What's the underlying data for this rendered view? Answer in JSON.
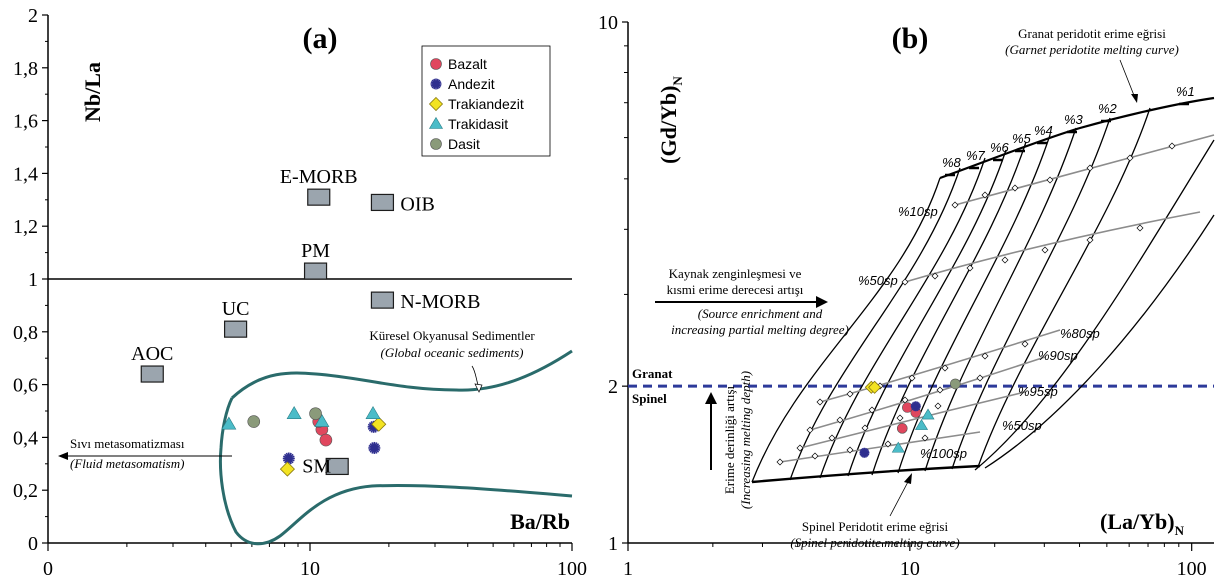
{
  "chart_data": [
    {
      "type": "scatter",
      "panel_label": "(a)",
      "xlabel": "Ba/Rb",
      "ylabel": "Nb/La",
      "xscale": "log",
      "xlim": [
        1,
        100
      ],
      "ylim": [
        0,
        2
      ],
      "x_ticks": [
        "0",
        "10",
        "100"
      ],
      "y_ticks": [
        "0",
        "0,2",
        "0,4",
        "0,6",
        "0,8",
        "1",
        "1,2",
        "1,4",
        "1,6",
        "1,8",
        "2"
      ],
      "reference_line_y": 1,
      "legend": {
        "position": "top-right",
        "items": [
          {
            "label": "Bazalt",
            "symbol": "circle",
            "color": "#e0475e"
          },
          {
            "label": "Andezit",
            "symbol": "star",
            "color": "#2f2f8f"
          },
          {
            "label": "Trakiandezit",
            "symbol": "diamond",
            "color": "#f3e322"
          },
          {
            "label": "Trakidasit",
            "symbol": "triangle",
            "color": "#4bbcc8"
          },
          {
            "label": "Dasit",
            "symbol": "circle",
            "color": "#8a9a7a"
          }
        ]
      },
      "reference_points": [
        {
          "label": "E-MORB",
          "x": 10.8,
          "y": 1.31
        },
        {
          "label": "OIB",
          "x": 18.9,
          "y": 1.29
        },
        {
          "label": "PM",
          "x": 10.5,
          "y": 1.03
        },
        {
          "label": "N-MORB",
          "x": 18.9,
          "y": 0.92
        },
        {
          "label": "UC",
          "x": 5.2,
          "y": 0.81
        },
        {
          "label": "AOC",
          "x": 2.5,
          "y": 0.64
        },
        {
          "label": "SM",
          "x": 12.7,
          "y": 0.29
        }
      ],
      "sediment_field_label": "Küresel Okyanusal Sedimentler",
      "sediment_field_label_en": "(Global oceanic sediments)",
      "fluid_arrow_label": "Sıvı metasomatizması",
      "fluid_arrow_label_en": "(Fluid metasomatism)",
      "series": [
        {
          "name": "Bazalt",
          "points": [
            [
              11.1,
              0.43
            ],
            [
              11.5,
              0.39
            ],
            [
              10.8,
              0.46
            ]
          ]
        },
        {
          "name": "Andezit",
          "points": [
            [
              8.3,
              0.32
            ],
            [
              17.6,
              0.36
            ],
            [
              17.5,
              0.44
            ]
          ]
        },
        {
          "name": "Trakiandezit",
          "points": [
            [
              8.2,
              0.28
            ],
            [
              18.3,
              0.45
            ]
          ]
        },
        {
          "name": "Trakidasit",
          "points": [
            [
              4.9,
              0.45
            ],
            [
              8.7,
              0.49
            ],
            [
              11.1,
              0.46
            ],
            [
              17.4,
              0.49
            ]
          ]
        },
        {
          "name": "Dasit",
          "points": [
            [
              6.1,
              0.46
            ],
            [
              10.5,
              0.49
            ]
          ]
        }
      ]
    },
    {
      "type": "line",
      "panel_label": "(b)",
      "xlabel": "(La/Yb)",
      "xlabel_sub": "N",
      "ylabel": "(Gd/Yb)",
      "ylabel_sub": "N",
      "xscale": "log",
      "yscale": "log",
      "xlim": [
        1,
        120
      ],
      "ylim": [
        1,
        10
      ],
      "x_ticks": [
        "1",
        "10",
        "100"
      ],
      "y_ticks": [
        "1",
        "2",
        "10"
      ],
      "boundary_y": 2,
      "boundary_upper": "Granat",
      "boundary_lower": "Spinel",
      "garnet_curve_title": "Granat peridotit erime eğrisi",
      "garnet_curve_title_en": "(Garnet peridotite melting curve)",
      "spinel_curve_title": "Spinel Peridotit erime eğrisi",
      "spinel_curve_title_en": "(Spinel peridotite melting curve)",
      "source_arrow_label": "Kaynak zenginleşmesi ve",
      "source_arrow_label_2": "kısmi erime derecesi artışı",
      "source_arrow_label_en": "(Source enrichment and",
      "source_arrow_label_en_2": "increasing partial melting degree)",
      "depth_arrow_label": "Erime derinliği artışı",
      "depth_arrow_label_en": "(Increasing melting depth)",
      "garnet_melting_labels": [
        "%8",
        "%7",
        "%6",
        "%5",
        "%4",
        "%3",
        "%2",
        "%1"
      ],
      "mixing_labels": [
        "%10sp",
        "%50sp",
        "%80sp",
        "%90sp",
        "%95sp",
        "%50sp",
        "%100sp"
      ],
      "series": [
        {
          "name": "Bazalt",
          "points": [
            [
              9.8,
              1.82
            ],
            [
              10.5,
              1.78
            ],
            [
              9.4,
              1.66
            ]
          ]
        },
        {
          "name": "Andezit",
          "points": [
            [
              10.5,
              1.83
            ],
            [
              6.9,
              1.49
            ]
          ]
        },
        {
          "name": "Trakiandezit",
          "points": [
            [
              7.3,
              1.99
            ],
            [
              7.5,
              1.99
            ]
          ]
        },
        {
          "name": "Trakidasit",
          "points": [
            [
              11.6,
              1.76
            ],
            [
              11.0,
              1.68
            ],
            [
              9.1,
              1.52
            ]
          ]
        },
        {
          "name": "Dasit",
          "points": [
            [
              14.5,
              2.02
            ]
          ]
        }
      ]
    }
  ]
}
